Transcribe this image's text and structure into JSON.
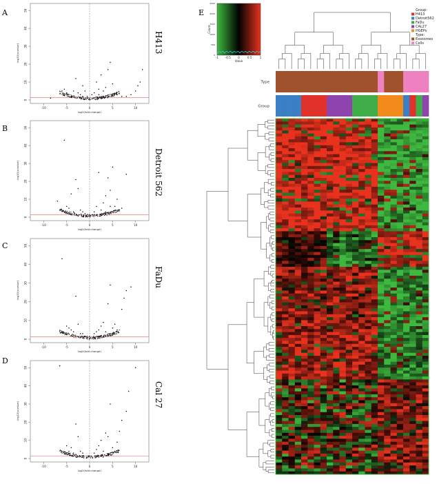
{
  "figure": {
    "panels": [
      {
        "letter": "A",
        "side_label": "H413"
      },
      {
        "letter": "B",
        "side_label": "Detroit 562"
      },
      {
        "letter": "C",
        "side_label": "FaDu"
      },
      {
        "letter": "D",
        "side_label": "Cal 27"
      }
    ],
    "heatmap_letter": "E"
  },
  "chart_data": [
    {
      "type": "scatter",
      "panel": "A",
      "title": "",
      "xlabel": "log2(fold-change)",
      "ylabel": "-log10(p-value)",
      "xlim": [
        -12,
        12
      ],
      "ylim": [
        0,
        52
      ],
      "x_ticks": [
        -10,
        -5,
        0,
        5,
        10
      ],
      "y_ticks": [
        0,
        10,
        20,
        30,
        40,
        50
      ],
      "threshold_y": 1.3,
      "vline_x": 0,
      "points": [
        [
          -8.5,
          1
        ],
        [
          -6,
          5
        ],
        [
          -5.5,
          6
        ],
        [
          -5,
          4
        ],
        [
          -4.5,
          3
        ],
        [
          -4,
          2
        ],
        [
          -3.5,
          5
        ],
        [
          -3,
          12
        ],
        [
          -2.5,
          4
        ],
        [
          -2,
          3
        ],
        [
          -1.5,
          2
        ],
        [
          -1,
          5
        ],
        [
          -0.5,
          2
        ],
        [
          0.5,
          3
        ],
        [
          1,
          4
        ],
        [
          1.5,
          10
        ],
        [
          2,
          6
        ],
        [
          2.5,
          14
        ],
        [
          3,
          5
        ],
        [
          3.5,
          7
        ],
        [
          4,
          17
        ],
        [
          4.5,
          21
        ],
        [
          5,
          9
        ],
        [
          6,
          3
        ],
        [
          7,
          2
        ],
        [
          8,
          2
        ],
        [
          9,
          3
        ],
        [
          10,
          5
        ],
        [
          10.5,
          8
        ],
        [
          11,
          10
        ],
        [
          11.5,
          17
        ],
        [
          -1.5,
          8
        ],
        [
          2,
          3
        ],
        [
          3,
          2
        ]
      ]
    },
    {
      "type": "scatter",
      "panel": "B",
      "title": "",
      "xlabel": "log2(fold-change)",
      "ylabel": "-log10(p-value)",
      "xlim": [
        -12,
        12
      ],
      "ylim": [
        0,
        52
      ],
      "x_ticks": [
        -10,
        -5,
        0,
        5,
        10
      ],
      "y_ticks": [
        0,
        10,
        20,
        30,
        40,
        50
      ],
      "threshold_y": 1.3,
      "vline_x": 0,
      "points": [
        [
          -7,
          9
        ],
        [
          -5.5,
          43
        ],
        [
          -5,
          6
        ],
        [
          -4.5,
          5
        ],
        [
          -4,
          13
        ],
        [
          -3.5,
          3
        ],
        [
          -3,
          21
        ],
        [
          -2.5,
          16
        ],
        [
          -2,
          4
        ],
        [
          -1.5,
          3
        ],
        [
          -1,
          2
        ],
        [
          1,
          3
        ],
        [
          1.5,
          6
        ],
        [
          2,
          25
        ],
        [
          2.5,
          4
        ],
        [
          3,
          8
        ],
        [
          3.5,
          12
        ],
        [
          4,
          22
        ],
        [
          4.5,
          15
        ],
        [
          5,
          28
        ],
        [
          5.5,
          6
        ],
        [
          6,
          10
        ],
        [
          7,
          5
        ],
        [
          8,
          24
        ],
        [
          6.5,
          4
        ],
        [
          4.5,
          6
        ],
        [
          3.5,
          3
        ]
      ]
    },
    {
      "type": "scatter",
      "panel": "C",
      "title": "",
      "xlabel": "log2(fold-change)",
      "ylabel": "-log10(p-value)",
      "xlim": [
        -12,
        12
      ],
      "ylim": [
        0,
        52
      ],
      "x_ticks": [
        -10,
        -5,
        0,
        5,
        10
      ],
      "y_ticks": [
        0,
        10,
        20,
        30,
        40,
        50
      ],
      "threshold_y": 1.3,
      "vline_x": 0,
      "points": [
        [
          -6,
          43
        ],
        [
          -3,
          23
        ],
        [
          -5,
          7
        ],
        [
          -4.5,
          6
        ],
        [
          -4,
          5
        ],
        [
          -3.5,
          4
        ],
        [
          -2.5,
          8
        ],
        [
          -2,
          3
        ],
        [
          -1.5,
          3
        ],
        [
          1,
          3
        ],
        [
          1.5,
          4
        ],
        [
          2,
          5
        ],
        [
          2.5,
          7
        ],
        [
          3,
          9
        ],
        [
          3.5,
          4
        ],
        [
          4,
          19
        ],
        [
          4.5,
          29
        ],
        [
          5,
          6
        ],
        [
          6,
          5
        ],
        [
          7,
          16
        ],
        [
          7.5,
          22
        ],
        [
          8,
          26
        ],
        [
          9,
          28
        ],
        [
          5.5,
          8
        ],
        [
          4.5,
          3
        ]
      ]
    },
    {
      "type": "scatter",
      "panel": "D",
      "title": "",
      "xlabel": "log2(fold-change)",
      "ylabel": "-log10(p-value)",
      "xlim": [
        -12,
        12
      ],
      "ylim": [
        0,
        52
      ],
      "x_ticks": [
        -10,
        -5,
        0,
        5,
        10
      ],
      "y_ticks": [
        0,
        10,
        20,
        30,
        40,
        50
      ],
      "threshold_y": 1.3,
      "vline_x": 0,
      "points": [
        [
          -6.5,
          51
        ],
        [
          -3,
          19
        ],
        [
          -5,
          7
        ],
        [
          -4.5,
          4
        ],
        [
          -4,
          6
        ],
        [
          -3.5,
          3
        ],
        [
          -2.5,
          12
        ],
        [
          -2,
          4
        ],
        [
          -1.5,
          3
        ],
        [
          1,
          3
        ],
        [
          1.5,
          5
        ],
        [
          2,
          7
        ],
        [
          2.5,
          10
        ],
        [
          3,
          4
        ],
        [
          3.5,
          14
        ],
        [
          4,
          12
        ],
        [
          4.5,
          30
        ],
        [
          5,
          6
        ],
        [
          6,
          9
        ],
        [
          6.5,
          15
        ],
        [
          7,
          21
        ],
        [
          8,
          26
        ],
        [
          8.5,
          37
        ],
        [
          10,
          50
        ],
        [
          5.5,
          4
        ]
      ]
    },
    {
      "type": "heatmap",
      "panel": "E",
      "title": "",
      "color_key": {
        "title": "",
        "ylabel": "Count",
        "xlabel": "Value",
        "ticks": [
          -1,
          -0.5,
          0,
          0.5,
          1
        ],
        "y_ticks": [
          0,
          500,
          1000,
          1500,
          2000,
          2500
        ]
      },
      "legend": {
        "group_title": "Group:",
        "groups": [
          {
            "name": "H413",
            "color": "#e0322a"
          },
          {
            "name": "Detroit562",
            "color": "#3b7fc4"
          },
          {
            "name": "FaDu",
            "color": "#3fae49"
          },
          {
            "name": "CAL27",
            "color": "#8e44ad"
          },
          {
            "name": "HGEPs",
            "color": "#f28a1c"
          }
        ],
        "type_title": "Type:",
        "types": [
          {
            "name": "Exosomes",
            "color": "#a0522d"
          },
          {
            "name": "Cells",
            "color": "#ee82c0"
          }
        ]
      },
      "row_annotations": [
        "Type",
        "Group"
      ],
      "columns": [
        {
          "type": "Exosomes",
          "group": "Detroit562"
        },
        {
          "type": "Exosomes",
          "group": "Detroit562"
        },
        {
          "type": "Exosomes",
          "group": "Detroit562"
        },
        {
          "type": "Exosomes",
          "group": "Detroit562"
        },
        {
          "type": "Exosomes",
          "group": "H413"
        },
        {
          "type": "Exosomes",
          "group": "H413"
        },
        {
          "type": "Exosomes",
          "group": "H413"
        },
        {
          "type": "Exosomes",
          "group": "H413"
        },
        {
          "type": "Exosomes",
          "group": "CAL27"
        },
        {
          "type": "Exosomes",
          "group": "CAL27"
        },
        {
          "type": "Exosomes",
          "group": "CAL27"
        },
        {
          "type": "Exosomes",
          "group": "CAL27"
        },
        {
          "type": "Exosomes",
          "group": "FaDu"
        },
        {
          "type": "Exosomes",
          "group": "FaDu"
        },
        {
          "type": "Exosomes",
          "group": "FaDu"
        },
        {
          "type": "Exosomes",
          "group": "FaDu"
        },
        {
          "type": "Cells",
          "group": "HGEPs"
        },
        {
          "type": "Exosomes",
          "group": "HGEPs"
        },
        {
          "type": "Exosomes",
          "group": "HGEPs"
        },
        {
          "type": "Exosomes",
          "group": "HGEPs"
        },
        {
          "type": "Cells",
          "group": "Detroit562"
        },
        {
          "type": "Cells",
          "group": "H413"
        },
        {
          "type": "Cells",
          "group": "FaDu"
        },
        {
          "type": "Cells",
          "group": "CAL27"
        }
      ],
      "n_rows": 120,
      "colors": {
        "low": "#3fb83f",
        "mid": "#000000",
        "high": "#e8321e"
      }
    }
  ]
}
